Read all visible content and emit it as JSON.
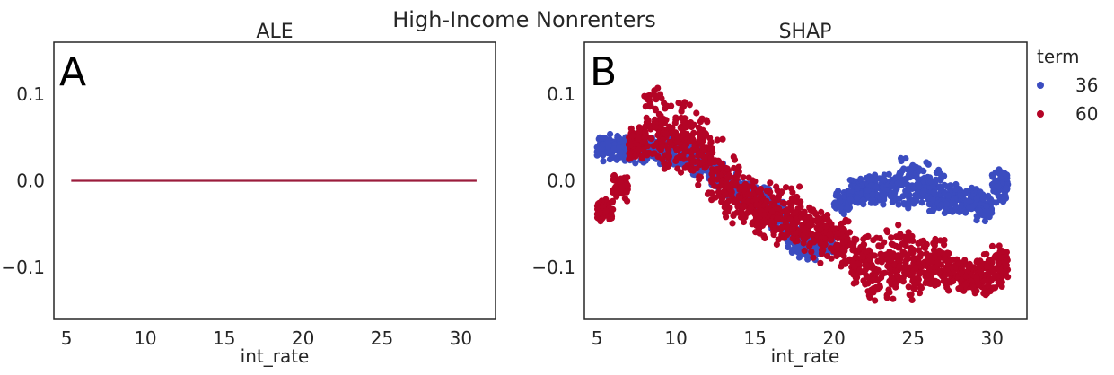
{
  "suptitle": "High-Income Nonrenters",
  "colors": {
    "term36": "#3b4cc0",
    "term60": "#b40426",
    "ale_line": "#9b1c3c",
    "axis": "#262626"
  },
  "chart_data": [
    {
      "type": "line",
      "panel": "A",
      "title": "ALE",
      "xlabel": "int_rate",
      "ylabel": "",
      "xlim": [
        4.2,
        32.2
      ],
      "ylim": [
        -0.16,
        0.16
      ],
      "xticks": [
        5,
        10,
        15,
        20,
        25,
        30
      ],
      "yticks": [
        0.1,
        0.0,
        -0.1
      ],
      "ytick_labels": [
        "0.1",
        "0.0",
        "−0.1"
      ],
      "series": [
        {
          "x": [
            5.3,
            31.0
          ],
          "y": [
            0.0,
            0.0
          ]
        }
      ]
    },
    {
      "type": "scatter",
      "panel": "B",
      "title": "SHAP",
      "xlabel": "int_rate",
      "ylabel": "",
      "xlim": [
        4.2,
        32.2
      ],
      "ylim": [
        -0.16,
        0.16
      ],
      "xticks": [
        5,
        10,
        15,
        20,
        25,
        30
      ],
      "yticks": [
        0.1,
        0.0,
        -0.1
      ],
      "ytick_labels": [
        "0.1",
        "0.0",
        "−0.1"
      ],
      "legend": {
        "title": "term",
        "placement": "outside-right",
        "entries": [
          "36",
          "60"
        ]
      },
      "series": [
        {
          "name": "36",
          "color": "#3b4cc0",
          "bands": [
            {
              "x": 5.5,
              "ylo": 0.018,
              "yhi": 0.058
            },
            {
              "x": 6.5,
              "ylo": 0.02,
              "yhi": 0.058
            },
            {
              "x": 7.5,
              "ylo": 0.018,
              "yhi": 0.058
            },
            {
              "x": 8.5,
              "ylo": 0.02,
              "yhi": 0.05
            },
            {
              "x": 9.5,
              "ylo": 0.018,
              "yhi": 0.055
            },
            {
              "x": 10.5,
              "ylo": 0.015,
              "yhi": 0.055
            },
            {
              "x": 11.5,
              "ylo": 0.005,
              "yhi": 0.045
            },
            {
              "x": 12.5,
              "ylo": -0.01,
              "yhi": 0.025
            },
            {
              "x": 13.5,
              "ylo": -0.02,
              "yhi": 0.01
            },
            {
              "x": 14.5,
              "ylo": -0.03,
              "yhi": 0.0
            },
            {
              "x": 15.5,
              "ylo": -0.04,
              "yhi": -0.005
            },
            {
              "x": 16.5,
              "ylo": -0.06,
              "yhi": -0.02
            },
            {
              "x": 17.5,
              "ylo": -0.09,
              "yhi": -0.05
            },
            {
              "x": 18.5,
              "ylo": -0.095,
              "yhi": -0.06
            },
            {
              "x": 19.5,
              "ylo": -0.09,
              "yhi": -0.05
            },
            {
              "x": 20.5,
              "ylo": -0.04,
              "yhi": -0.01
            },
            {
              "x": 21.5,
              "ylo": -0.03,
              "yhi": 0.005
            },
            {
              "x": 22.5,
              "ylo": -0.03,
              "yhi": 0.01
            },
            {
              "x": 23.5,
              "ylo": -0.03,
              "yhi": 0.01
            },
            {
              "x": 24.5,
              "ylo": -0.035,
              "yhi": 0.03
            },
            {
              "x": 25.5,
              "ylo": -0.035,
              "yhi": 0.025
            },
            {
              "x": 26.5,
              "ylo": -0.04,
              "yhi": 0.015
            },
            {
              "x": 27.5,
              "ylo": -0.04,
              "yhi": 0.0
            },
            {
              "x": 28.5,
              "ylo": -0.04,
              "yhi": -0.005
            },
            {
              "x": 29.5,
              "ylo": -0.05,
              "yhi": -0.01
            },
            {
              "x": 30.5,
              "ylo": -0.03,
              "yhi": 0.02
            }
          ]
        },
        {
          "name": "60",
          "color": "#b40426",
          "bands": [
            {
              "x": 5.5,
              "ylo": -0.05,
              "yhi": -0.02
            },
            {
              "x": 6.5,
              "ylo": -0.025,
              "yhi": 0.01
            },
            {
              "x": 7.5,
              "ylo": 0.02,
              "yhi": 0.07
            },
            {
              "x": 8.5,
              "ylo": 0.01,
              "yhi": 0.12
            },
            {
              "x": 9.5,
              "ylo": 0.005,
              "yhi": 0.1
            },
            {
              "x": 10.5,
              "ylo": 0.0,
              "yhi": 0.095
            },
            {
              "x": 11.5,
              "ylo": -0.01,
              "yhi": 0.08
            },
            {
              "x": 12.5,
              "ylo": -0.03,
              "yhi": 0.06
            },
            {
              "x": 13.5,
              "ylo": -0.05,
              "yhi": 0.03
            },
            {
              "x": 14.5,
              "ylo": -0.06,
              "yhi": 0.01
            },
            {
              "x": 15.5,
              "ylo": -0.07,
              "yhi": 0.01
            },
            {
              "x": 16.5,
              "ylo": -0.08,
              "yhi": 0.0
            },
            {
              "x": 17.5,
              "ylo": -0.08,
              "yhi": -0.005
            },
            {
              "x": 18.5,
              "ylo": -0.09,
              "yhi": -0.02
            },
            {
              "x": 19.5,
              "ylo": -0.1,
              "yhi": -0.03
            },
            {
              "x": 20.5,
              "ylo": -0.11,
              "yhi": -0.04
            },
            {
              "x": 21.5,
              "ylo": -0.13,
              "yhi": -0.06
            },
            {
              "x": 22.5,
              "ylo": -0.14,
              "yhi": -0.06
            },
            {
              "x": 23.5,
              "ylo": -0.145,
              "yhi": -0.05
            },
            {
              "x": 24.5,
              "ylo": -0.14,
              "yhi": -0.05
            },
            {
              "x": 25.5,
              "ylo": -0.135,
              "yhi": -0.06
            },
            {
              "x": 26.5,
              "ylo": -0.13,
              "yhi": -0.06
            },
            {
              "x": 27.5,
              "ylo": -0.13,
              "yhi": -0.08
            },
            {
              "x": 28.5,
              "ylo": -0.135,
              "yhi": -0.09
            },
            {
              "x": 29.5,
              "ylo": -0.135,
              "yhi": -0.08
            },
            {
              "x": 30.5,
              "ylo": -0.135,
              "yhi": -0.07
            }
          ]
        }
      ]
    }
  ]
}
